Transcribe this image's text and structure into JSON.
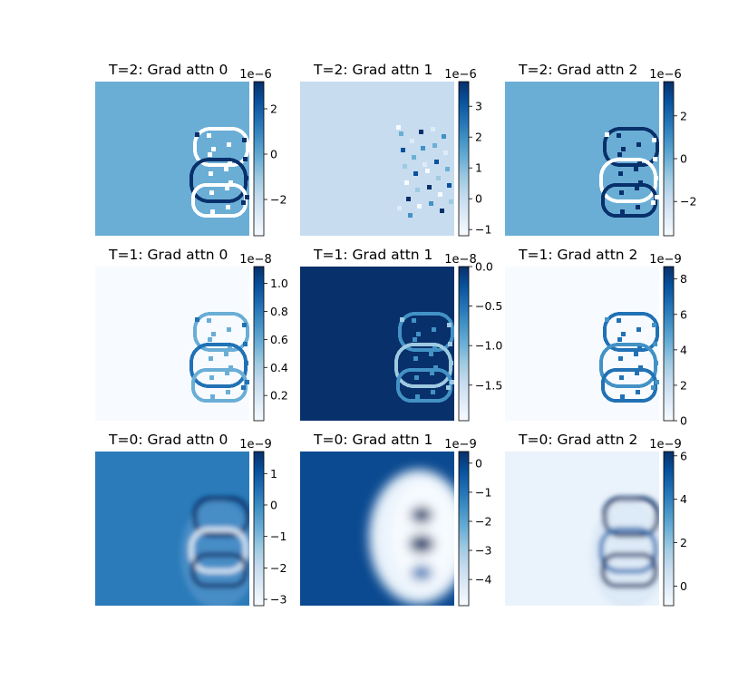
{
  "chart_data": [
    {
      "type": "heatmap",
      "title": "T=2: Grad attn 0",
      "colormap": "Blues",
      "background": "#6aaed6",
      "colorbar": {
        "range": [
          -3.6,
          3.2
        ],
        "ticks": [
          2,
          0,
          -2
        ],
        "tick_labels": [
          "2",
          "0",
          "−2"
        ],
        "offset_label": "1e−6"
      },
      "pattern": "rings",
      "rings": {
        "fill": "#ffffff",
        "fill2": "#08306b"
      }
    },
    {
      "type": "heatmap",
      "title": "T=2: Grad attn 1",
      "colormap": "Blues",
      "background": "#c7dcef",
      "colorbar": {
        "range": [
          -1.2,
          3.8
        ],
        "ticks": [
          3,
          2,
          1,
          0,
          -1
        ],
        "tick_labels": [
          "3",
          "2",
          "1",
          "0",
          "−1"
        ],
        "offset_label": "1e−6"
      },
      "pattern": "speckle"
    },
    {
      "type": "heatmap",
      "title": "T=2: Grad attn 2",
      "colormap": "Blues",
      "background": "#6aaed6",
      "colorbar": {
        "range": [
          -3.6,
          3.6
        ],
        "ticks": [
          2,
          0,
          -2
        ],
        "tick_labels": [
          "2",
          "0",
          "−2"
        ],
        "offset_label": "1e−6"
      },
      "pattern": "rings",
      "rings": {
        "fill": "#08306b",
        "fill2": "#ffffff"
      }
    },
    {
      "type": "heatmap",
      "title": "T=1: Grad attn 0",
      "colormap": "Blues",
      "background": "#f7fbff",
      "colorbar": {
        "range": [
          0.02,
          1.12
        ],
        "ticks": [
          1.0,
          0.8,
          0.6,
          0.4,
          0.2
        ],
        "tick_labels": [
          "1.0",
          "0.8",
          "0.6",
          "0.4",
          "0.2"
        ],
        "offset_label": "1e−8"
      },
      "pattern": "rings",
      "rings": {
        "fill": "#6aaed6",
        "fill2": "#2171b5"
      }
    },
    {
      "type": "heatmap",
      "title": "T=1: Grad attn 1",
      "colormap": "Blues",
      "background": "#08306b",
      "colorbar": {
        "range": [
          -1.95,
          0.0
        ],
        "ticks": [
          0.0,
          -0.5,
          -1.0,
          -1.5
        ],
        "tick_labels": [
          "0.0",
          "−0.5",
          "−1.0",
          "−1.5"
        ],
        "offset_label": "1e−8"
      },
      "pattern": "rings",
      "rings": {
        "fill": "#4292c6",
        "fill2": "#9ecae1"
      }
    },
    {
      "type": "heatmap",
      "title": "T=1: Grad attn 2",
      "colormap": "Blues",
      "background": "#f7fbff",
      "colorbar": {
        "range": [
          0,
          8.7
        ],
        "ticks": [
          8,
          6,
          4,
          2,
          0
        ],
        "tick_labels": [
          "8",
          "6",
          "4",
          "2",
          "0"
        ],
        "offset_label": "1e−9"
      },
      "pattern": "rings",
      "rings": {
        "fill": "#2171b5",
        "fill2": "#4292c6"
      }
    },
    {
      "type": "heatmap",
      "title": "T=0: Grad attn 0",
      "colormap": "Blues",
      "background": "#2b7bba",
      "colorbar": {
        "range": [
          -3.2,
          1.7
        ],
        "ticks": [
          1,
          0,
          -1,
          -2,
          -3
        ],
        "tick_labels": [
          "1",
          "0",
          "−1",
          "−2",
          "−3"
        ],
        "offset_label": "1e−9"
      },
      "pattern": "blur",
      "rings": {
        "fill": "#deebf7",
        "fill2": "#08306b"
      }
    },
    {
      "type": "heatmap",
      "title": "T=0: Grad attn 1",
      "colormap": "Blues",
      "background": "#0b4a90",
      "colorbar": {
        "range": [
          -4.9,
          0.4
        ],
        "ticks": [
          0,
          -1,
          -2,
          -3,
          -4
        ],
        "tick_labels": [
          "0",
          "−1",
          "−2",
          "−3",
          "−4"
        ],
        "offset_label": "1e−9"
      },
      "pattern": "blob",
      "rings": {
        "fill": "#f7fbff",
        "fill2": "#08306b"
      }
    },
    {
      "type": "heatmap",
      "title": "T=0: Grad attn 2",
      "colormap": "Blues",
      "background": "#eaf3fb",
      "colorbar": {
        "range": [
          -0.9,
          6.2
        ],
        "ticks": [
          6,
          4,
          2,
          0
        ],
        "tick_labels": [
          "6",
          "4",
          "2",
          "0"
        ],
        "offset_label": "1e−9"
      },
      "pattern": "blur",
      "rings": {
        "fill": "#2171b5",
        "fill2": "#08306b"
      }
    }
  ]
}
